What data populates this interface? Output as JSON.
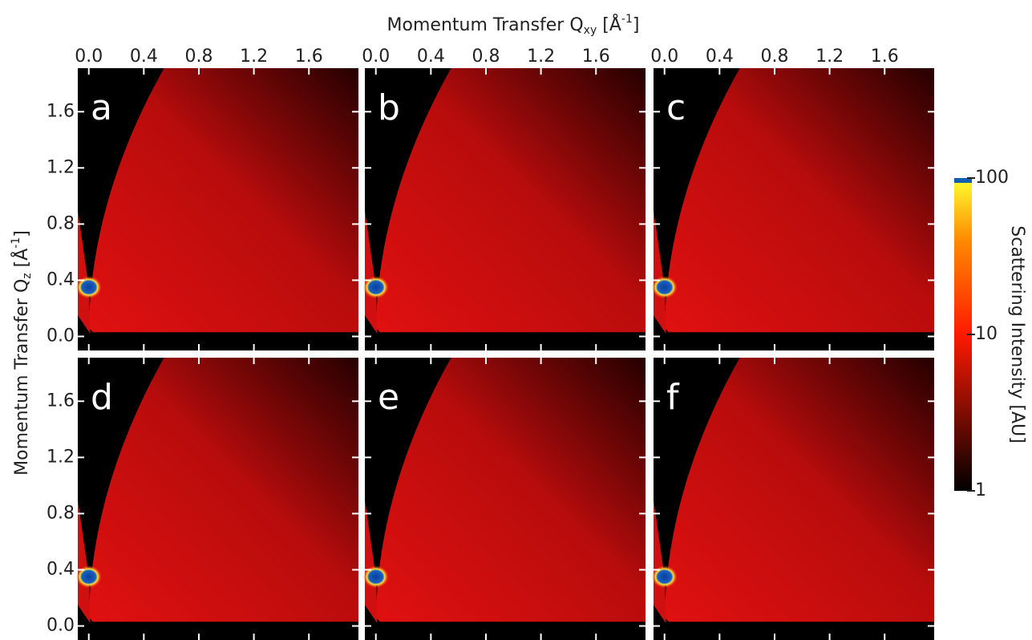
{
  "chart_data": {
    "type": "heatmap",
    "x_label_parts": [
      "Momentum Transfer Q",
      "xy",
      " [Å",
      "-1",
      "]"
    ],
    "y_label_parts": [
      "Momentum Transfer Q",
      "z",
      " [Å",
      "-1",
      "]"
    ],
    "xlim": [
      -0.08,
      1.96
    ],
    "xticks": [
      "0.0",
      "0.4",
      "0.8",
      "1.2",
      "1.6"
    ],
    "ylim": [
      -0.1,
      1.91
    ],
    "yticks": [
      "0.0",
      "0.4",
      "0.8",
      "1.2",
      "1.6"
    ],
    "panels": [
      "a",
      "b",
      "c",
      "d",
      "e",
      "f"
    ],
    "colorbar": {
      "label": "Scattering Intensity [AU]",
      "lim": [
        1,
        100
      ],
      "ticks": [
        1,
        10,
        100
      ],
      "log": true
    }
  }
}
